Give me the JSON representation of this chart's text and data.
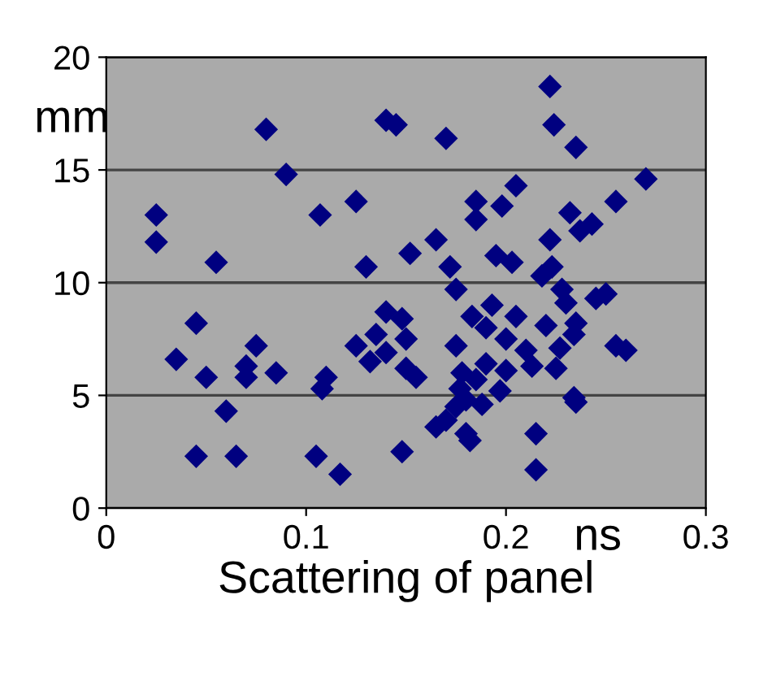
{
  "chart_data": {
    "type": "scatter",
    "xlabel": "Scattering of panel",
    "ylabel": "mm",
    "annotations": [
      "ns"
    ],
    "xlim": [
      0,
      0.3
    ],
    "ylim": [
      0,
      20
    ],
    "xticks": [
      0,
      0.1,
      0.2,
      0.3
    ],
    "yticks": [
      0,
      5,
      10,
      15,
      20
    ],
    "grid": "y",
    "marker": "diamond",
    "legend": false,
    "series": [
      {
        "color": "#000080",
        "x": [
          0.025,
          0.025,
          0.035,
          0.045,
          0.045,
          0.05,
          0.055,
          0.06,
          0.065,
          0.07,
          0.07,
          0.075,
          0.08,
          0.085,
          0.09,
          0.105,
          0.107,
          0.108,
          0.11,
          0.117,
          0.125,
          0.125,
          0.13,
          0.132,
          0.135,
          0.14,
          0.14,
          0.145,
          0.14,
          0.148,
          0.15,
          0.148,
          0.15,
          0.152,
          0.155,
          0.165,
          0.165,
          0.17,
          0.17,
          0.172,
          0.175,
          0.175,
          0.175,
          0.177,
          0.178,
          0.18,
          0.18,
          0.182,
          0.183,
          0.185,
          0.185,
          0.185,
          0.188,
          0.19,
          0.19,
          0.193,
          0.195,
          0.197,
          0.198,
          0.2,
          0.2,
          0.203,
          0.205,
          0.205,
          0.21,
          0.213,
          0.215,
          0.215,
          0.218,
          0.22,
          0.222,
          0.222,
          0.224,
          0.223,
          0.225,
          0.227,
          0.228,
          0.23,
          0.232,
          0.234,
          0.235,
          0.235,
          0.234,
          0.235,
          0.237,
          0.243,
          0.245,
          0.25,
          0.255,
          0.255,
          0.26,
          0.27
        ],
        "values": [
          13.0,
          11.8,
          6.6,
          8.2,
          2.3,
          5.8,
          10.9,
          4.3,
          2.3,
          5.8,
          6.3,
          7.2,
          16.8,
          6.0,
          14.8,
          2.3,
          13.0,
          5.3,
          5.8,
          1.5,
          13.6,
          7.2,
          10.7,
          6.5,
          7.7,
          17.2,
          8.7,
          17.0,
          6.9,
          8.4,
          7.5,
          2.5,
          6.2,
          11.3,
          5.8,
          3.6,
          11.9,
          3.9,
          16.4,
          10.7,
          9.7,
          7.2,
          4.5,
          5.3,
          6.0,
          4.8,
          3.3,
          3.0,
          8.5,
          12.8,
          13.6,
          5.7,
          4.6,
          6.4,
          8.0,
          9.0,
          11.2,
          5.2,
          13.4,
          6.1,
          7.5,
          10.9,
          14.3,
          8.5,
          7.0,
          6.3,
          3.3,
          1.7,
          10.3,
          8.1,
          11.9,
          18.7,
          17.0,
          10.7,
          6.2,
          7.1,
          9.7,
          9.1,
          13.1,
          7.7,
          8.2,
          16.0,
          4.9,
          4.7,
          12.3,
          12.6,
          9.3,
          9.5,
          13.6,
          7.2,
          7.0,
          14.6
        ]
      }
    ]
  }
}
